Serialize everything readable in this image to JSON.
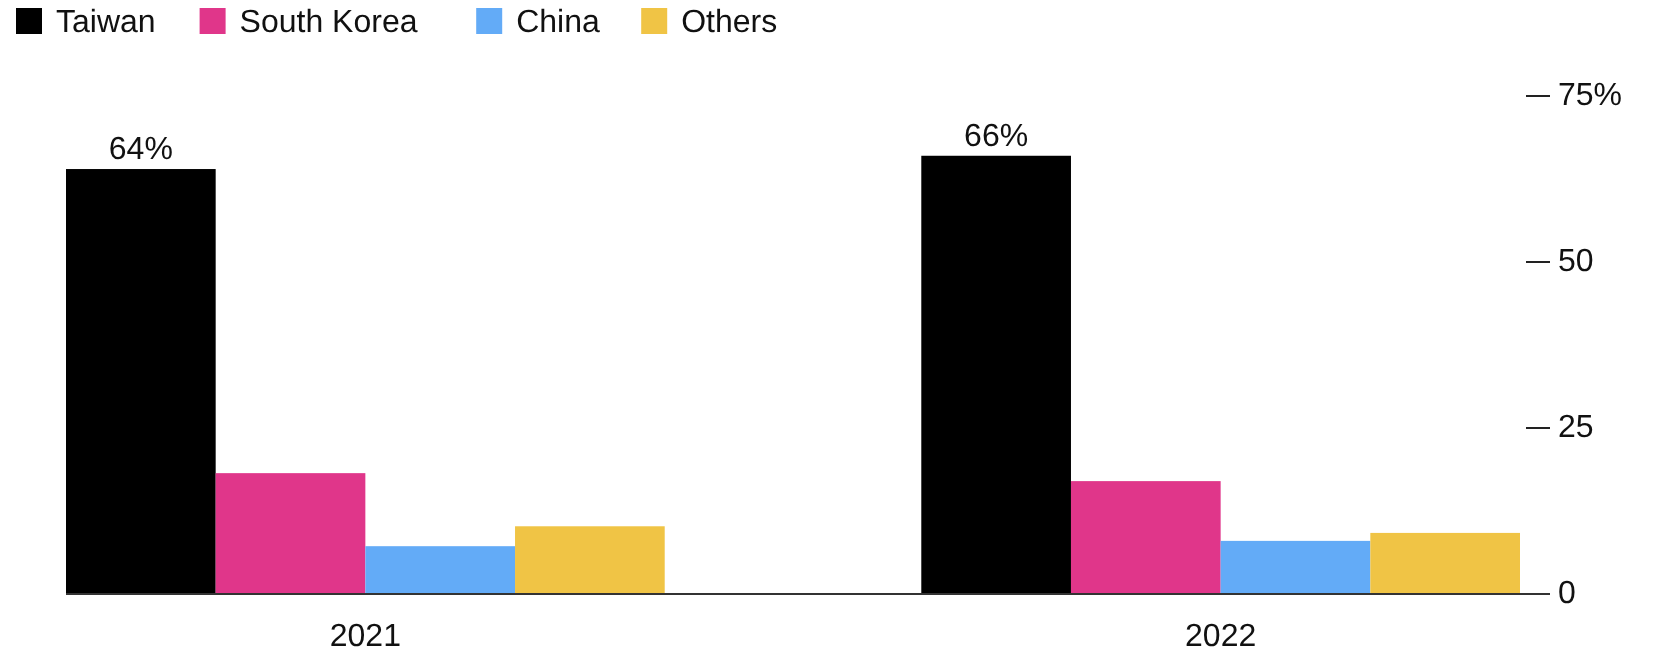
{
  "chart_data": {
    "type": "bar",
    "categories": [
      "2021",
      "2022"
    ],
    "series": [
      {
        "name": "Taiwan",
        "color": "#000000",
        "values": [
          64,
          66
        ],
        "value_labels": [
          "64%",
          "66%"
        ]
      },
      {
        "name": "South Korea",
        "color": "#e0368a",
        "values": [
          18.2,
          17
        ]
      },
      {
        "name": "China",
        "color": "#63abf7",
        "values": [
          7.2,
          8
        ]
      },
      {
        "name": "Others",
        "color": "#f0c445",
        "values": [
          10.2,
          9.2
        ]
      }
    ],
    "ylim": [
      0,
      75
    ],
    "yticks": [
      0,
      25,
      50,
      {
        "value": 75,
        "label": "75%"
      }
    ],
    "grid": false,
    "legend": "top left"
  }
}
